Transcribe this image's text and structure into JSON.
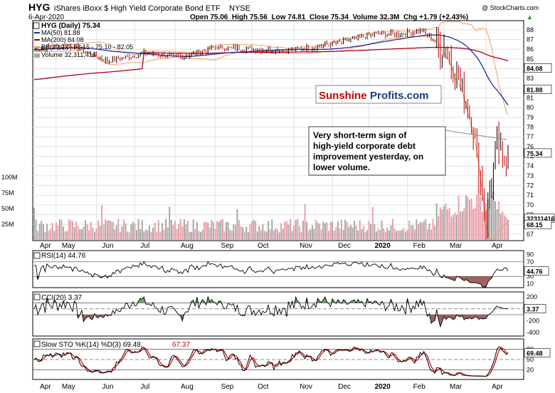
{
  "header": {
    "symbol": "HYG",
    "name": "iShares iBoxx $ High Yield Corporate Bond ETF",
    "exchange": "NYSE",
    "date": "6-Apr-2020",
    "copyright": "@ StockCharts.com",
    "ohlc_text": "Open 75.06  High 75.56  Low 74.81  Close 75.34  Volume 32.3M  Chg +1.79 (+2.43%)",
    "ohlc_arrow": "▲"
  },
  "legend": {
    "price": "HYG (Daily) 75.34",
    "ma50": "MA(50) 81.88",
    "ma200": "MA(200) 84.08",
    "bb": "BB(20,2.0) 68.15 - 75.10 - 82.05",
    "volume": "Volume 32,311,416"
  },
  "watermark": {
    "part1": "Sunshine",
    "part2": "Profits.com"
  },
  "annotation": {
    "line1": "Very short-term sign of",
    "line2": "high-yield corporate debt",
    "line3": "improvement yesterday, on",
    "line4": "lower volume."
  },
  "price_axis": {
    "ticks": [
      "88",
      "87",
      "86",
      "85",
      "84",
      "83",
      "82",
      "81",
      "80",
      "79",
      "78",
      "77",
      "76",
      "75",
      "74",
      "73",
      "72",
      "71",
      "70",
      "69",
      "68",
      "67"
    ],
    "tags": {
      "ma200": "84.08",
      "ma50": "81.88",
      "close": "75.34",
      "volume": "32311416",
      "bb_lower": "68.15"
    }
  },
  "volume_axis": {
    "ticks": [
      "100M",
      "75M",
      "50M",
      "25M"
    ]
  },
  "x_axis": {
    "labels": [
      "Apr",
      "May",
      "Jun",
      "Jul",
      "Aug",
      "Sep",
      "Oct",
      "Nov",
      "Dec",
      "2020",
      "Feb",
      "Mar",
      "Apr"
    ]
  },
  "rsi": {
    "label": "RSI(14) 44.76",
    "ticks": [
      "90",
      "70",
      "50",
      "30",
      "10"
    ],
    "tag": "44.76",
    "value": 44.76
  },
  "cci": {
    "label": "CCI(20) 3.37",
    "ticks": [
      "200",
      "0",
      "-200",
      "-400"
    ],
    "tag": "3.37",
    "value": 3.37
  },
  "sto": {
    "label_k": "Slow STO %K(14) %D(3) 69.48,",
    "label_d": "67.37",
    "ticks": [
      "80",
      "50",
      "20"
    ],
    "tag": "69.48",
    "k": 69.48,
    "d": 67.37
  },
  "colors": {
    "price": "#000000",
    "ma50": "#1f2fa0",
    "ma200": "#b0001a",
    "bb": "#f0a060",
    "volume_up": "#a8a8a8",
    "volume_down": "#e8a0a8",
    "rsi_fill": "#4c8a4c",
    "cci_fill_pos": "#4c8a4c",
    "cci_fill_neg": "#8a3a3a",
    "sto_k": "#000000",
    "sto_d": "#cc0000",
    "brand_red": "#cc0000",
    "brand_blue": "#1a3a8a"
  },
  "chart_data": {
    "type": "line",
    "title": "HYG iShares iBoxx $ High Yield Corporate Bond ETF NYSE",
    "x_range": [
      "2019-04-01",
      "2020-04-06"
    ],
    "ylim": [
      66.5,
      88.5
    ],
    "series": [
      {
        "name": "HYG (Daily) 75.34",
        "x": [
          "2019-04",
          "2019-05",
          "2019-06",
          "2019-07",
          "2019-08",
          "2019-09",
          "2019-10",
          "2019-11",
          "2019-12",
          "2020-01",
          "2020-02",
          "2020-02-20",
          "2020-03-09",
          "2020-03-23",
          "2020-04-06"
        ],
        "values": [
          86.0,
          86.3,
          84.7,
          85.6,
          85.7,
          86.3,
          86.2,
          85.8,
          86.4,
          87.6,
          87.8,
          88.1,
          82.5,
          68.1,
          75.34
        ]
      },
      {
        "name": "MA(50) 81.88",
        "values": [
          83.4,
          84.4,
          85.0,
          85.3,
          85.6,
          85.8,
          86.0,
          86.2,
          86.4,
          86.7,
          87.2,
          87.5,
          87.2,
          85.5,
          81.88
        ]
      },
      {
        "name": "MA(200) 84.08",
        "values": [
          82.1,
          82.5,
          82.9,
          83.3,
          83.7,
          84.0,
          84.3,
          84.6,
          84.9,
          85.2,
          85.5,
          85.7,
          85.8,
          85.2,
          84.08
        ]
      },
      {
        "name": "Volume 32,311,416",
        "unit": "shares",
        "values": [
          15000000,
          22000000,
          28000000,
          25000000,
          24000000,
          22000000,
          22000000,
          20000000,
          23000000,
          25000000,
          26000000,
          30000000,
          55000000,
          70000000,
          32311416
        ]
      }
    ],
    "indicators": {
      "rsi": {
        "name": "RSI(14)",
        "last": 44.76,
        "range": [
          10,
          90
        ]
      },
      "cci": {
        "name": "CCI(20)",
        "last": 3.37,
        "range": [
          -400,
          200
        ]
      },
      "stochastic": {
        "name": "Slow STO %K(14) %D(3)",
        "k": 69.48,
        "d": 67.37,
        "range": [
          0,
          100
        ]
      }
    },
    "grid": true,
    "legend": "top-left"
  }
}
